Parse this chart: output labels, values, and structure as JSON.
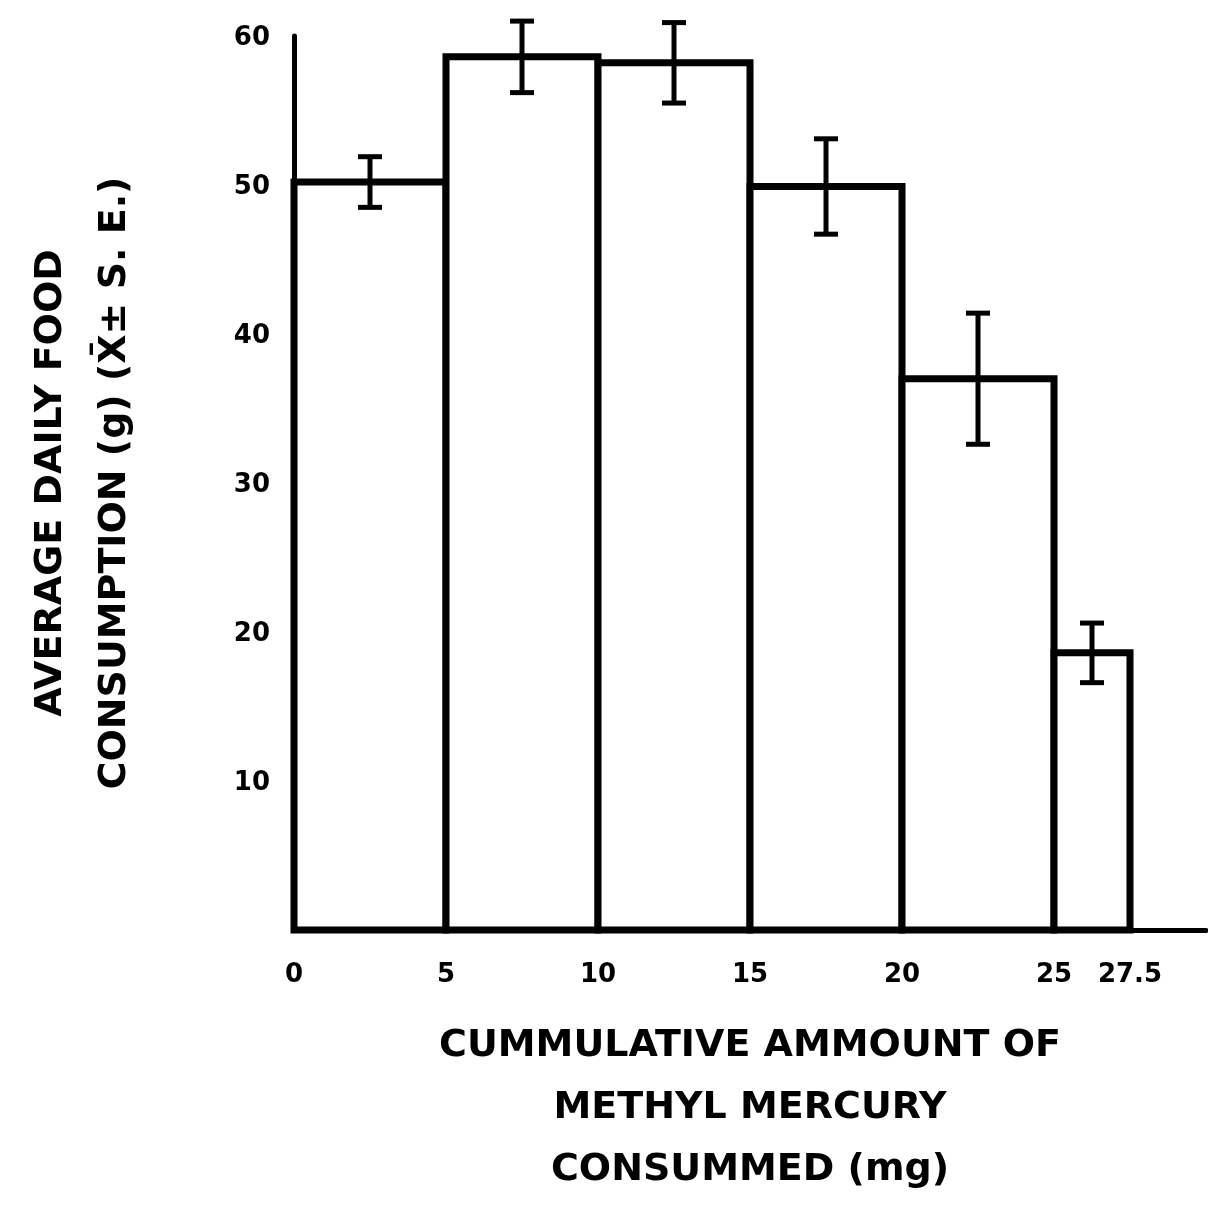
{
  "chart_data": {
    "type": "histogram",
    "xlabel": "CUMMULATIVE AMMOUNT OF\nMETHYL MERCURY\nCONSUMMED (mg)",
    "ylabel": "AVERAGE DAILY FOOD\nCONSUMPTION (g) (X̄± S. E.)",
    "bins": [
      0,
      5,
      10,
      15,
      20,
      25,
      27.5
    ],
    "values": [
      50.2,
      58.6,
      58.2,
      49.9,
      37,
      18.6
    ],
    "errors": [
      1.7,
      2.4,
      2.7,
      3.2,
      4.4,
      2
    ],
    "color": "#000000",
    "xlim": [
      0,
      30
    ],
    "xticks": [
      0,
      5,
      10,
      15,
      20,
      25,
      27.5
    ],
    "ylim": [
      0,
      60
    ],
    "yticks": [
      10,
      20,
      30,
      40,
      50,
      60
    ],
    "grid": false
  }
}
